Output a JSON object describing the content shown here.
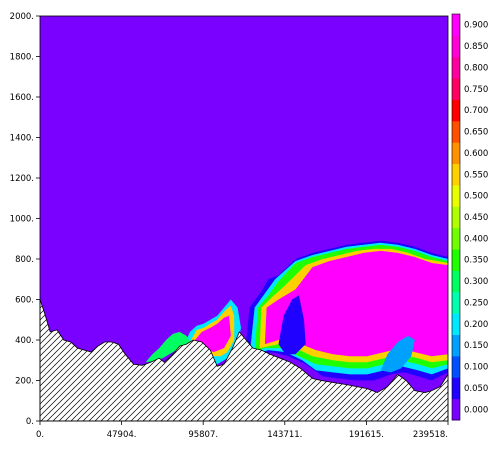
{
  "chart_data": {
    "type": "heatmap",
    "title": "",
    "xlabel": "",
    "ylabel": "",
    "xlim": [
      0,
      239518
    ],
    "ylim": [
      0,
      2000
    ],
    "x_ticks": [
      {
        "value": 0,
        "label": "0."
      },
      {
        "value": 47904,
        "label": "47904."
      },
      {
        "value": 95807,
        "label": "95807."
      },
      {
        "value": 143711,
        "label": "143711."
      },
      {
        "value": 191615,
        "label": "191615."
      },
      {
        "value": 239518,
        "label": "239518."
      }
    ],
    "y_ticks": [
      {
        "value": 0,
        "label": "0."
      },
      {
        "value": 200,
        "label": "200."
      },
      {
        "value": 400,
        "label": "400."
      },
      {
        "value": 600,
        "label": "600."
      },
      {
        "value": 800,
        "label": "800."
      },
      {
        "value": 1000,
        "label": "1000."
      },
      {
        "value": 1200,
        "label": "1200."
      },
      {
        "value": 1400,
        "label": "1400."
      },
      {
        "value": 1600,
        "label": "1600."
      },
      {
        "value": 1800,
        "label": "1800."
      },
      {
        "value": 2000,
        "label": "2000."
      }
    ],
    "colorbar": {
      "levels": [
        "0.000",
        "0.050",
        "0.100",
        "0.150",
        "0.200",
        "0.250",
        "0.300",
        "0.350",
        "0.400",
        "0.450",
        "0.500",
        "0.550",
        "0.600",
        "0.650",
        "0.700",
        "0.750",
        "0.800",
        "0.850",
        "0.900"
      ],
      "colors": [
        "#7a00ff",
        "#2000ff",
        "#0050ff",
        "#00a0ff",
        "#00e8ff",
        "#00ffb0",
        "#00ff60",
        "#20ff00",
        "#70ff00",
        "#b0ff00",
        "#e8ff00",
        "#ffd000",
        "#ff9000",
        "#ff5000",
        "#ff0000",
        "#ff0060",
        "#ff00a0",
        "#ff00d8",
        "#ff00ff"
      ]
    },
    "background_value": "0.000",
    "terrain_hatched": true,
    "terrain": [
      [
        0,
        600
      ],
      [
        2400,
        540
      ],
      [
        6000,
        440
      ],
      [
        10000,
        450
      ],
      [
        14000,
        400
      ],
      [
        18000,
        390
      ],
      [
        22000,
        360
      ],
      [
        26000,
        350
      ],
      [
        30000,
        340
      ],
      [
        34000,
        370
      ],
      [
        38000,
        390
      ],
      [
        42000,
        390
      ],
      [
        46000,
        380
      ],
      [
        50000,
        330
      ],
      [
        55000,
        280
      ],
      [
        60000,
        275
      ],
      [
        65000,
        290
      ],
      [
        70000,
        310
      ],
      [
        73000,
        290
      ],
      [
        78000,
        330
      ],
      [
        82000,
        370
      ],
      [
        86000,
        380
      ],
      [
        90000,
        400
      ],
      [
        95000,
        390
      ],
      [
        100000,
        350
      ],
      [
        104000,
        270
      ],
      [
        108000,
        280
      ],
      [
        113000,
        360
      ],
      [
        117000,
        440
      ],
      [
        121000,
        400
      ],
      [
        125000,
        360
      ],
      [
        130000,
        350
      ],
      [
        135000,
        330
      ],
      [
        141000,
        310
      ],
      [
        147000,
        290
      ],
      [
        153000,
        260
      ],
      [
        160000,
        210
      ],
      [
        165000,
        200
      ],
      [
        172000,
        190
      ],
      [
        180000,
        180
      ],
      [
        186000,
        170
      ],
      [
        192000,
        160
      ],
      [
        198000,
        140
      ],
      [
        204000,
        170
      ],
      [
        210000,
        230
      ],
      [
        215000,
        200
      ],
      [
        220000,
        150
      ],
      [
        226000,
        140
      ],
      [
        230000,
        150
      ],
      [
        235000,
        170
      ],
      [
        239518,
        230
      ]
    ]
  }
}
